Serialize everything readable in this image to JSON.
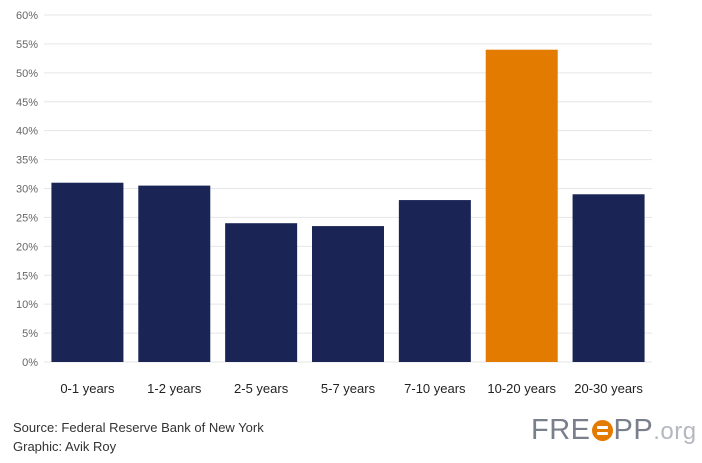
{
  "chart_data": {
    "type": "bar",
    "title": "",
    "xlabel": "",
    "ylabel": "",
    "categories": [
      "0-1 years",
      "1-2 years",
      "2-5 years",
      "5-7 years",
      "7-10 years",
      "10-20 years",
      "20-30 years"
    ],
    "values": [
      31,
      30.5,
      24,
      23.5,
      28,
      54,
      29
    ],
    "value_unit": "%",
    "ylim": [
      0,
      60
    ],
    "yticks": [
      "0%",
      "5%",
      "10%",
      "15%",
      "20%",
      "25%",
      "30%",
      "35%",
      "40%",
      "45%",
      "50%",
      "55%",
      "60%"
    ],
    "grid": true,
    "legend": "none",
    "colors": {
      "default_bar": "#1a2556",
      "highlight_bar": "#e27b00",
      "gridline": "#e6e6e6"
    },
    "highlight_category": "10-20 years"
  },
  "footer": {
    "source": "Source: Federal Reserve Bank of New York",
    "graphic": "Graphic: Avik Roy"
  },
  "logo": {
    "text_before": "FRE",
    "text_after": "PP",
    "suffix": ".org",
    "mark_icon": "freopp-equals-circle-icon",
    "mark_color": "#e27b00"
  }
}
